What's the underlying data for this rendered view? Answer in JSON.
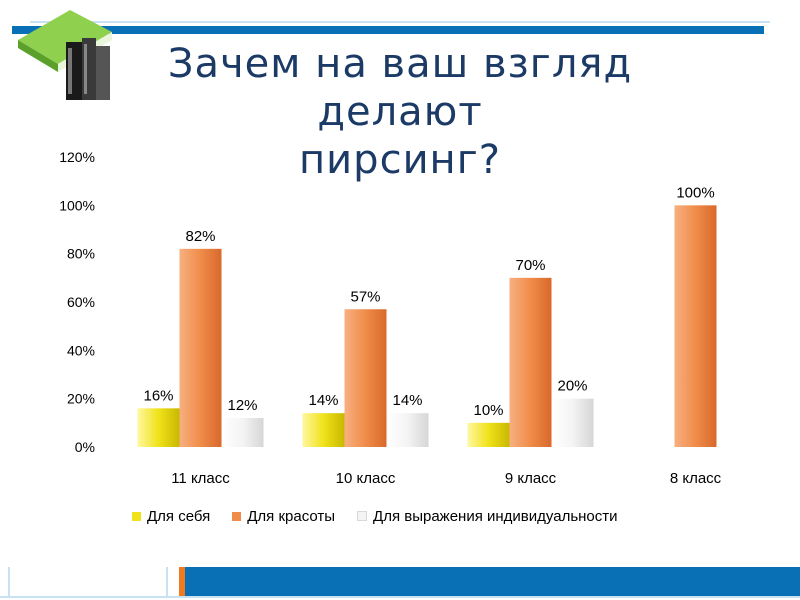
{
  "slide": {
    "title_line1": "Зачем на ваш взгляд делают",
    "title_line2": "пирсинг?"
  },
  "icons": {
    "books": "books-icon"
  },
  "colors": {
    "accent_blue": "#0a70b6",
    "accent_orange": "#f07a1e",
    "series_yellow": "#f0e21a",
    "series_orange": "#f08c4a",
    "series_white": "#f4f4f4"
  },
  "chart_data": {
    "type": "bar",
    "categories": [
      "11 класс",
      "10 класс",
      "9 класс",
      "8 класс"
    ],
    "series": [
      {
        "name": "Для себя",
        "values": [
          16,
          14,
          10,
          null
        ],
        "labels": [
          "16%",
          "14%",
          "10%",
          ""
        ]
      },
      {
        "name": "Для красоты",
        "values": [
          82,
          57,
          70,
          100
        ],
        "labels": [
          "82%",
          "57%",
          "70%",
          "100%"
        ]
      },
      {
        "name": "Для выражения индивидуальности",
        "values": [
          12,
          14,
          20,
          null
        ],
        "labels": [
          "12%",
          "14%",
          "20%",
          ""
        ]
      }
    ],
    "ylim": [
      0,
      120
    ],
    "yticks": [
      "0%",
      "20%",
      "40%",
      "60%",
      "80%",
      "100%",
      "120%"
    ],
    "ytick_values": [
      0,
      20,
      40,
      60,
      80,
      100,
      120
    ],
    "grid": false,
    "legend": "bottom"
  }
}
